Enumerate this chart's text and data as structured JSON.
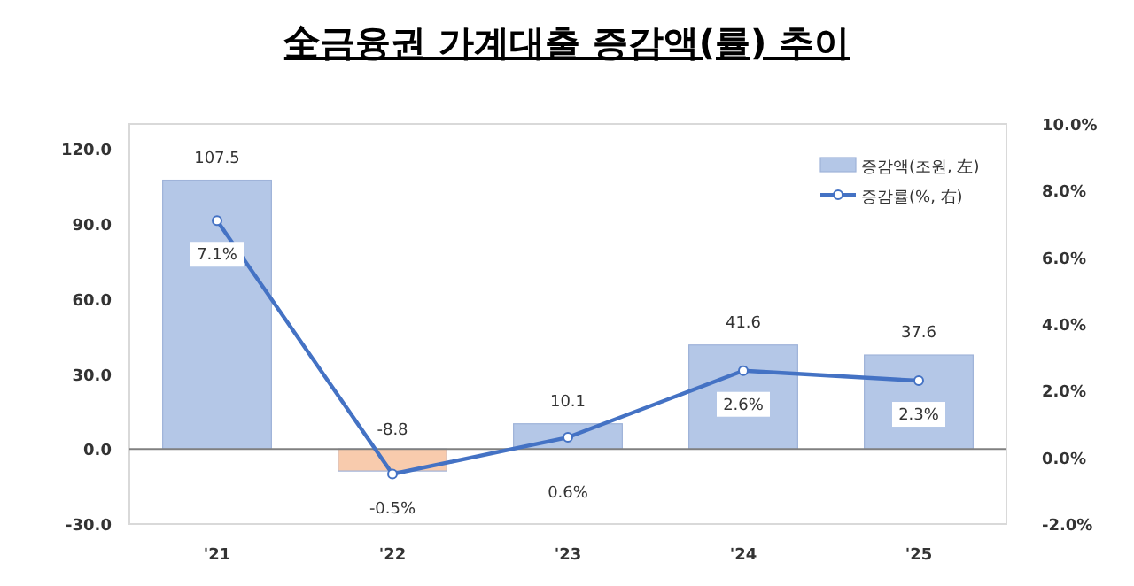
{
  "chart_data": {
    "type": "bar",
    "title": "全금융권 가계대출 증감액(률) 추이",
    "categories": [
      "'21",
      "'22",
      "'23",
      "'24",
      "'25"
    ],
    "series": [
      {
        "name": "증감액(조원, 左)",
        "color": "#b4c7e7",
        "colors": [
          "#b4c7e7",
          "#f8cbad",
          "#b4c7e7",
          "#b4c7e7",
          "#b4c7e7"
        ],
        "values": [
          107.5,
          -8.8,
          10.1,
          41.6,
          37.6
        ],
        "value_labels": [
          "107.5",
          "-8.8",
          "10.1",
          "41.6",
          "37.6"
        ]
      },
      {
        "name": "증감률(%, 右)",
        "type": "line",
        "axis": "y2",
        "color": "#4472c4",
        "marker": "circle",
        "values": [
          7.1,
          -0.5,
          0.6,
          2.6,
          2.3
        ],
        "value_labels": [
          "7.1%",
          "-0.5%",
          "0.6%",
          "2.6%",
          "2.3%"
        ]
      }
    ],
    "ylim": [
      -30,
      130
    ],
    "yticks": [
      {
        "value": -30,
        "label": "-30.0"
      },
      {
        "value": 0,
        "label": "0.0"
      },
      {
        "value": 30,
        "label": "30.0"
      },
      {
        "value": 60,
        "label": "60.0"
      },
      {
        "value": 90,
        "label": "90.0"
      },
      {
        "value": 120,
        "label": "120.0"
      }
    ],
    "y2lim": [
      -2,
      10
    ],
    "y2ticks": [
      {
        "value": -2,
        "label": "-2.0%"
      },
      {
        "value": 0,
        "label": "0.0%"
      },
      {
        "value": 2,
        "label": "2.0%"
      },
      {
        "value": 4,
        "label": "4.0%"
      },
      {
        "value": 6,
        "label": "6.0%"
      },
      {
        "value": 8,
        "label": "8.0%"
      },
      {
        "value": 10,
        "label": "10.0%"
      }
    ],
    "legend": "top right"
  }
}
